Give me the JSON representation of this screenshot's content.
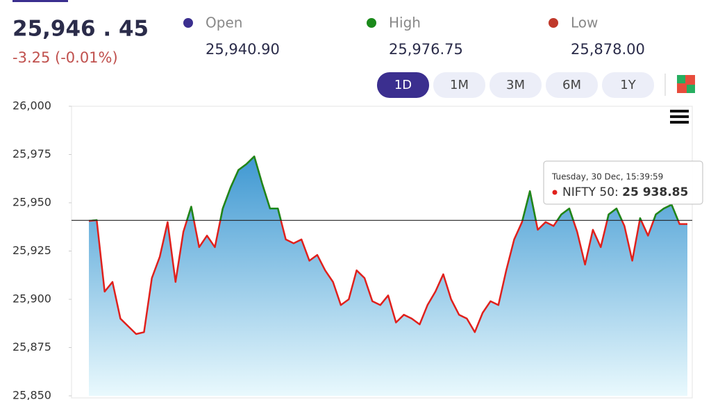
{
  "header": {
    "price": "25,946 . 45",
    "change": "-3.25 (-0.01%)"
  },
  "stats": [
    {
      "label": "Open",
      "value": "25,940.90",
      "color": "#3b2f8f"
    },
    {
      "label": "High",
      "value": "25,976.75",
      "color": "#1b8a1b"
    },
    {
      "label": "Low",
      "value": "25,878.00",
      "color": "#c0392b"
    }
  ],
  "ranges": [
    "1D",
    "1M",
    "3M",
    "6M",
    "1Y"
  ],
  "active_range": "1D",
  "chart_data": {
    "type": "line",
    "values": [
      25940.6,
      25941,
      25904,
      25909,
      25890,
      25886,
      25882,
      25883,
      25911,
      25922,
      25940,
      25909,
      25935,
      25948,
      25927,
      25933,
      25927,
      25947,
      25958,
      25967,
      25970,
      25974,
      25960,
      25947,
      25947,
      25931,
      25929,
      25931,
      25920,
      25923,
      25915,
      25909,
      25897,
      25900,
      25915,
      25911,
      25899,
      25897,
      25902,
      25888,
      25892,
      25890,
      25887,
      25897,
      25904,
      25913,
      25900,
      25892,
      25890,
      25883,
      25893,
      25899,
      25897,
      25915,
      25931,
      25940,
      25956,
      25936,
      25940,
      25938,
      25944,
      25947,
      25935,
      25918,
      25936,
      25927,
      25944,
      25947,
      25938,
      25920,
      25942,
      25933,
      25944,
      25947,
      25949,
      25939,
      25939
    ],
    "reference_line": 25940.9,
    "color_above": "#1b8a1b",
    "color_below": "#e0201c",
    "ylim": [
      25850,
      26000
    ],
    "yticks": [
      {
        "value": 25850,
        "label": "25,850"
      },
      {
        "value": 25875,
        "label": "25,875"
      },
      {
        "value": 25900,
        "label": "25,900"
      },
      {
        "value": 25925,
        "label": "25,925"
      },
      {
        "value": 25950,
        "label": "25,950"
      },
      {
        "value": 25975,
        "label": "25,975"
      },
      {
        "value": 26000,
        "label": "26,000"
      }
    ],
    "tooltip": {
      "date": "Tuesday, 30 Dec, 15:39:59",
      "series": "NIFTY 50: ",
      "value": "25 938.85"
    }
  }
}
